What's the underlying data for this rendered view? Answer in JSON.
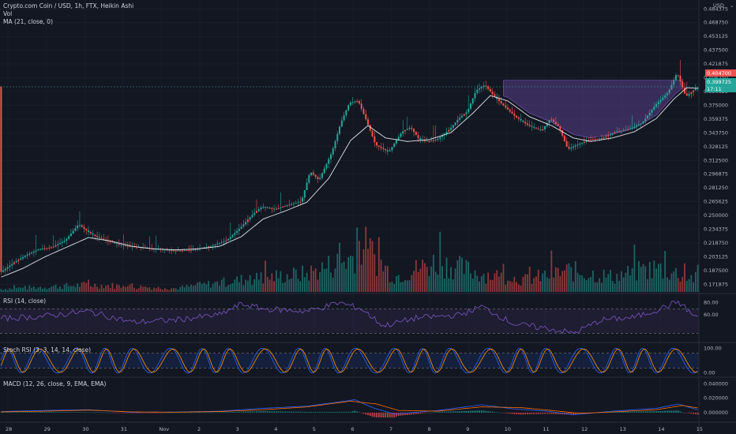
{
  "header": {
    "symbol_line": "Crypto.com Coin / USD, 1h, FTX, Heikin Ashi",
    "vol_label": "Vol",
    "ma_label": "MA (21, close, 0)",
    "currency": "USD"
  },
  "colors": {
    "background": "#131722",
    "up": "#26a69a",
    "down": "#ef5350",
    "ma_line": "#e0e3eb",
    "cup_fill": "#7e57c2",
    "rsi_line": "#7e57c2",
    "stoch_k": "#2962ff",
    "stoch_d": "#ff9800",
    "macd_line": "#2962ff",
    "signal_line": "#ff6d00",
    "price_tag_red": "#ef5350",
    "price_tag_green": "#26a69a"
  },
  "price_tags": {
    "red": "0.404700",
    "green_price": "0.399725",
    "green_timer": "17:11"
  },
  "chart_data": [
    {
      "type": "candlestick",
      "panel": "price",
      "y_axis_ticks": [
        "0.484375",
        "0.468750",
        "0.453125",
        "0.437500",
        "0.421875",
        "0.406250",
        "0.390625",
        "0.375000",
        "0.359375",
        "0.343750",
        "0.328125",
        "0.312500",
        "0.296875",
        "0.281250",
        "0.265625",
        "0.250000",
        "0.234375",
        "0.218750",
        "0.203125",
        "0.187500",
        "0.171875"
      ],
      "ylim": [
        0.165,
        0.49
      ],
      "x_ticks": [
        "28",
        "29",
        "30",
        "31",
        "Nov",
        "2",
        "3",
        "4",
        "5",
        "6",
        "7",
        "8",
        "9",
        "10",
        "11",
        "12",
        "13",
        "14",
        "15"
      ],
      "close_path": [
        [
          0,
          0.185
        ],
        [
          6,
          0.196
        ],
        [
          12,
          0.205
        ],
        [
          18,
          0.212
        ],
        [
          24,
          0.214
        ],
        [
          30,
          0.222
        ],
        [
          36,
          0.24
        ],
        [
          40,
          0.232
        ],
        [
          44,
          0.226
        ],
        [
          48,
          0.222
        ],
        [
          56,
          0.216
        ],
        [
          64,
          0.214
        ],
        [
          72,
          0.212
        ],
        [
          80,
          0.21
        ],
        [
          88,
          0.211
        ],
        [
          96,
          0.215
        ],
        [
          104,
          0.222
        ],
        [
          110,
          0.236
        ],
        [
          116,
          0.252
        ],
        [
          120,
          0.26
        ],
        [
          126,
          0.257
        ],
        [
          132,
          0.262
        ],
        [
          138,
          0.266
        ],
        [
          142,
          0.3
        ],
        [
          146,
          0.29
        ],
        [
          152,
          0.322
        ],
        [
          156,
          0.355
        ],
        [
          160,
          0.378
        ],
        [
          164,
          0.38
        ],
        [
          168,
          0.356
        ],
        [
          172,
          0.33
        ],
        [
          178,
          0.322
        ],
        [
          184,
          0.345
        ],
        [
          188,
          0.35
        ],
        [
          192,
          0.336
        ],
        [
          196,
          0.334
        ],
        [
          200,
          0.336
        ],
        [
          206,
          0.348
        ],
        [
          210,
          0.36
        ],
        [
          214,
          0.368
        ],
        [
          218,
          0.392
        ],
        [
          222,
          0.398
        ],
        [
          226,
          0.386
        ],
        [
          230,
          0.376
        ],
        [
          236,
          0.362
        ],
        [
          242,
          0.352
        ],
        [
          248,
          0.346
        ],
        [
          252,
          0.36
        ],
        [
          256,
          0.35
        ],
        [
          260,
          0.325
        ],
        [
          264,
          0.33
        ],
        [
          270,
          0.336
        ],
        [
          276,
          0.338
        ],
        [
          282,
          0.345
        ],
        [
          288,
          0.348
        ],
        [
          294,
          0.355
        ],
        [
          300,
          0.375
        ],
        [
          306,
          0.39
        ],
        [
          310,
          0.412
        ],
        [
          314,
          0.385
        ],
        [
          318,
          0.393
        ],
        [
          320,
          0.396
        ]
      ],
      "ma21_path": [
        [
          0,
          0.18
        ],
        [
          10,
          0.19
        ],
        [
          20,
          0.203
        ],
        [
          30,
          0.214
        ],
        [
          40,
          0.225
        ],
        [
          50,
          0.221
        ],
        [
          60,
          0.215
        ],
        [
          70,
          0.212
        ],
        [
          80,
          0.211
        ],
        [
          90,
          0.212
        ],
        [
          100,
          0.215
        ],
        [
          110,
          0.226
        ],
        [
          120,
          0.246
        ],
        [
          130,
          0.255
        ],
        [
          140,
          0.265
        ],
        [
          150,
          0.292
        ],
        [
          160,
          0.335
        ],
        [
          168,
          0.352
        ],
        [
          176,
          0.338
        ],
        [
          186,
          0.334
        ],
        [
          196,
          0.336
        ],
        [
          206,
          0.344
        ],
        [
          216,
          0.366
        ],
        [
          224,
          0.386
        ],
        [
          232,
          0.38
        ],
        [
          242,
          0.362
        ],
        [
          252,
          0.352
        ],
        [
          262,
          0.338
        ],
        [
          270,
          0.334
        ],
        [
          280,
          0.338
        ],
        [
          290,
          0.345
        ],
        [
          300,
          0.36
        ],
        [
          308,
          0.382
        ],
        [
          314,
          0.395
        ],
        [
          320,
          0.394
        ]
      ],
      "cup_highlight_top": 0.4035
    },
    {
      "type": "bar",
      "panel": "volume",
      "label": "Vol",
      "note": "relative volume, 0-1",
      "profile": [
        [
          0,
          0.05
        ],
        [
          40,
          0.12
        ],
        [
          80,
          0.06
        ],
        [
          110,
          0.2
        ],
        [
          140,
          0.3
        ],
        [
          160,
          0.55
        ],
        [
          165,
          0.8
        ],
        [
          180,
          0.25
        ],
        [
          200,
          0.5
        ],
        [
          220,
          0.3
        ],
        [
          240,
          0.2
        ],
        [
          260,
          0.35
        ],
        [
          280,
          0.25
        ],
        [
          300,
          0.4
        ],
        [
          320,
          0.2
        ]
      ]
    },
    {
      "type": "line",
      "panel": "rsi",
      "label": "RSI (14, close)",
      "y_axis_ticks": [
        "80.00",
        "60.00"
      ],
      "ylim": [
        20,
        90
      ],
      "bands": [
        70,
        30
      ],
      "path": [
        [
          0,
          54
        ],
        [
          20,
          58
        ],
        [
          40,
          66
        ],
        [
          60,
          48
        ],
        [
          80,
          52
        ],
        [
          100,
          60
        ],
        [
          110,
          78
        ],
        [
          120,
          70
        ],
        [
          140,
          66
        ],
        [
          155,
          80
        ],
        [
          165,
          70
        ],
        [
          175,
          42
        ],
        [
          190,
          55
        ],
        [
          210,
          60
        ],
        [
          220,
          74
        ],
        [
          235,
          45
        ],
        [
          250,
          38
        ],
        [
          262,
          30
        ],
        [
          275,
          52
        ],
        [
          290,
          56
        ],
        [
          300,
          68
        ],
        [
          310,
          82
        ],
        [
          318,
          56
        ],
        [
          320,
          60
        ]
      ]
    },
    {
      "type": "line",
      "panel": "stoch_rsi",
      "label": "Stoch RSI (3, 3, 14, 14, close)",
      "y_axis_ticks": [
        "100.00",
        "0.00"
      ],
      "ylim": [
        -5,
        105
      ],
      "band_top": 80,
      "band_bottom": 20,
      "cycles": 22
    },
    {
      "type": "line",
      "panel": "macd",
      "label": "MACD (12, 26, close, 9, EMA, EMA)",
      "y_axis_ticks": [
        "0.040000",
        "0.020000",
        "0.000000"
      ],
      "ylim": [
        -0.01,
        0.045
      ],
      "macd_path": [
        [
          0,
          0.0015
        ],
        [
          20,
          0.003
        ],
        [
          40,
          0.004
        ],
        [
          60,
          0.0005
        ],
        [
          80,
          0.0008
        ],
        [
          100,
          0.002
        ],
        [
          120,
          0.006
        ],
        [
          140,
          0.009
        ],
        [
          155,
          0.015
        ],
        [
          162,
          0.018
        ],
        [
          170,
          0.007
        ],
        [
          180,
          -0.002
        ],
        [
          200,
          0.003
        ],
        [
          220,
          0.011
        ],
        [
          235,
          0.005
        ],
        [
          250,
          0.002
        ],
        [
          262,
          -0.003
        ],
        [
          280,
          0.002
        ],
        [
          300,
          0.006
        ],
        [
          310,
          0.012
        ],
        [
          320,
          0.003
        ]
      ],
      "signal_path": [
        [
          0,
          0.001
        ],
        [
          20,
          0.002
        ],
        [
          40,
          0.0035
        ],
        [
          60,
          0.001
        ],
        [
          80,
          0.0006
        ],
        [
          100,
          0.0015
        ],
        [
          120,
          0.004
        ],
        [
          140,
          0.008
        ],
        [
          160,
          0.016
        ],
        [
          172,
          0.012
        ],
        [
          182,
          0.003
        ],
        [
          200,
          0.002
        ],
        [
          220,
          0.008
        ],
        [
          238,
          0.007
        ],
        [
          252,
          0.003
        ],
        [
          265,
          -0.001
        ],
        [
          280,
          0.001
        ],
        [
          300,
          0.004
        ],
        [
          312,
          0.01
        ],
        [
          320,
          0.006
        ]
      ]
    }
  ]
}
